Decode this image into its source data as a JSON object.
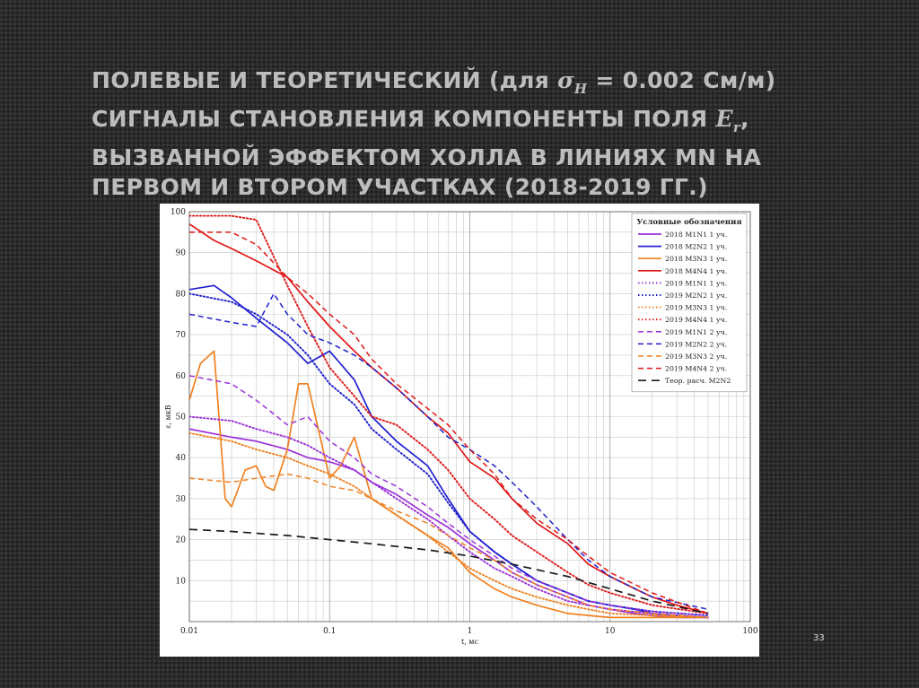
{
  "slide": {
    "title_lines": [
      {
        "pre": "ПОЛЕВЫЕ И ТЕОРЕТИЧЕСКИЙ (для ",
        "math": "σ",
        "math_sub": "H",
        "post": " = 0.002 См/м)"
      },
      {
        "pre": "СИГНАЛЫ СТАНОВЛЕНИЯ КОМПОНЕНТЫ ПОЛЯ ",
        "math": "E",
        "math_sub": "r",
        "post": ","
      },
      {
        "pre": "ВЫЗВАННОЙ ЭФФЕКТОМ ХОЛЛА В ЛИНИЯХ MN НА",
        "math": "",
        "math_sub": "",
        "post": ""
      },
      {
        "pre": "ПЕРВОМ И ВТОРОМ УЧАСТКАХ (2018-2019 ГГ.)",
        "math": "",
        "math_sub": "",
        "post": ""
      }
    ],
    "page_number": "33"
  },
  "chart_data": {
    "type": "line",
    "xlabel": "t, мс",
    "ylabel": "ε, мкВ",
    "x_scale": "log",
    "xlim": [
      0.01,
      100
    ],
    "ylim": [
      0,
      100
    ],
    "x_ticks": [
      0.01,
      0.1,
      1,
      10,
      100
    ],
    "x_tick_labels": [
      "0.01",
      "0.1",
      "1",
      "10",
      "100"
    ],
    "y_ticks": [
      10,
      20,
      30,
      40,
      50,
      60,
      70,
      80,
      90,
      100
    ],
    "y_tick_labels": [
      "10",
      "20",
      "30",
      "40",
      "50",
      "60",
      "70",
      "80",
      "90",
      "100"
    ],
    "grid": true,
    "legend": {
      "title": "Условные обозначения",
      "position": "top-right"
    },
    "series": [
      {
        "name": "2018 M1N1 1 уч.",
        "color": "#9b30d9",
        "style": "solid",
        "x": [
          0.01,
          0.02,
          0.03,
          0.05,
          0.07,
          0.1,
          0.15,
          0.2,
          0.3,
          0.5,
          0.7,
          1,
          1.5,
          2,
          3,
          5,
          7,
          10,
          15,
          20,
          30,
          50
        ],
        "y": [
          47,
          45,
          44,
          42,
          40,
          39,
          37,
          34,
          31,
          26,
          23,
          19,
          15,
          12,
          9,
          6,
          4,
          3,
          2,
          1.5,
          1,
          1
        ]
      },
      {
        "name": "2018 M2N2 1 уч.",
        "color": "#2020d0",
        "style": "solid",
        "x": [
          0.01,
          0.015,
          0.02,
          0.03,
          0.05,
          0.07,
          0.1,
          0.15,
          0.2,
          0.3,
          0.5,
          0.7,
          1,
          1.5,
          2,
          3,
          5,
          7,
          10,
          15,
          20,
          30,
          50
        ],
        "y": [
          81,
          82,
          79,
          74,
          68,
          63,
          66,
          59,
          50,
          44,
          38,
          30,
          22,
          17,
          14,
          10,
          7,
          5,
          4,
          3,
          2,
          1.5,
          1
        ]
      },
      {
        "name": "2018 M3N3 1 уч.",
        "color": "#f08020",
        "style": "solid",
        "x": [
          0.01,
          0.012,
          0.015,
          0.018,
          0.02,
          0.025,
          0.03,
          0.035,
          0.04,
          0.05,
          0.06,
          0.07,
          0.1,
          0.12,
          0.15,
          0.2,
          0.3,
          0.5,
          0.7,
          1,
          1.5,
          2,
          3,
          5,
          7,
          10,
          20,
          50
        ],
        "y": [
          54,
          63,
          66,
          30,
          28,
          37,
          38,
          33,
          32,
          42,
          58,
          58,
          35,
          38,
          45,
          30,
          26,
          21,
          18,
          12,
          8,
          6,
          4,
          2,
          1.5,
          1,
          1,
          1
        ]
      },
      {
        "name": "2018 M4N4 1 уч.",
        "color": "#e01818",
        "style": "solid",
        "x": [
          0.01,
          0.015,
          0.02,
          0.03,
          0.05,
          0.07,
          0.1,
          0.15,
          0.2,
          0.3,
          0.5,
          0.7,
          1,
          1.5,
          2,
          3,
          5,
          7,
          10,
          15,
          20,
          30,
          50
        ],
        "y": [
          97,
          93,
          91,
          88,
          84,
          78,
          72,
          66,
          62,
          57,
          50,
          46,
          39,
          35,
          30,
          24,
          19,
          14,
          11,
          8,
          6,
          4,
          2
        ]
      },
      {
        "name": "2019 M1N1 1 уч.",
        "color": "#9b30d9",
        "style": "dotted",
        "x": [
          0.01,
          0.02,
          0.03,
          0.05,
          0.07,
          0.1,
          0.15,
          0.2,
          0.3,
          0.5,
          0.7,
          1,
          1.5,
          2,
          3,
          5,
          7,
          10,
          20,
          50
        ],
        "y": [
          50,
          49,
          47,
          45,
          43,
          40,
          37,
          34,
          30,
          25,
          21,
          17,
          13,
          11,
          8,
          5,
          4,
          3,
          2,
          1
        ]
      },
      {
        "name": "2019 M2N2 1 уч.",
        "color": "#2020d0",
        "style": "dotted",
        "x": [
          0.01,
          0.02,
          0.03,
          0.05,
          0.07,
          0.1,
          0.15,
          0.2,
          0.3,
          0.5,
          0.7,
          1,
          1.5,
          2,
          3,
          5,
          7,
          10,
          20,
          50
        ],
        "y": [
          80,
          78,
          75,
          70,
          65,
          58,
          53,
          47,
          42,
          36,
          29,
          22,
          17,
          14,
          10,
          7,
          5,
          4,
          2.5,
          1.5
        ]
      },
      {
        "name": "2019 M3N3 1 уч.",
        "color": "#f08020",
        "style": "dotted",
        "x": [
          0.01,
          0.02,
          0.03,
          0.05,
          0.07,
          0.1,
          0.15,
          0.2,
          0.3,
          0.5,
          0.7,
          1,
          1.5,
          2,
          3,
          5,
          7,
          10,
          20,
          50
        ],
        "y": [
          46,
          44,
          42,
          40,
          38,
          36,
          33,
          30,
          26,
          21,
          17,
          13,
          10,
          8,
          6,
          4,
          3,
          2,
          1.5,
          1
        ]
      },
      {
        "name": "2019 M4N4 1 уч.",
        "color": "#e01818",
        "style": "dotted",
        "x": [
          0.01,
          0.02,
          0.03,
          0.05,
          0.07,
          0.1,
          0.15,
          0.2,
          0.3,
          0.5,
          0.7,
          1,
          1.5,
          2,
          3,
          5,
          7,
          10,
          20,
          50
        ],
        "y": [
          99,
          99,
          98,
          82,
          72,
          62,
          55,
          50,
          48,
          42,
          37,
          30,
          25,
          21,
          17,
          12,
          9,
          7,
          4,
          2
        ]
      },
      {
        "name": "2019 M1N1 2 уч.",
        "color": "#9b30d9",
        "style": "dashed",
        "x": [
          0.01,
          0.02,
          0.03,
          0.05,
          0.07,
          0.1,
          0.15,
          0.2,
          0.3,
          0.5,
          0.7,
          1,
          1.5,
          2,
          3,
          5,
          7,
          10,
          20,
          50
        ],
        "y": [
          60,
          58,
          54,
          48,
          50,
          44,
          40,
          36,
          33,
          28,
          24,
          20,
          16,
          13,
          10,
          7,
          5,
          4,
          2.5,
          1.5
        ]
      },
      {
        "name": "2019 M2N2 2 уч.",
        "color": "#2020d0",
        "style": "dashed",
        "x": [
          0.01,
          0.02,
          0.03,
          0.04,
          0.05,
          0.07,
          0.1,
          0.15,
          0.2,
          0.3,
          0.5,
          0.7,
          1,
          1.5,
          2,
          3,
          5,
          7,
          10,
          20,
          50
        ],
        "y": [
          75,
          73,
          72,
          80,
          75,
          70,
          68,
          65,
          62,
          57,
          50,
          45,
          42,
          38,
          34,
          28,
          20,
          15,
          11,
          6,
          3
        ]
      },
      {
        "name": "2019 M3N3 2 уч.",
        "color": "#f08020",
        "style": "dashed",
        "x": [
          0.01,
          0.02,
          0.03,
          0.05,
          0.07,
          0.1,
          0.15,
          0.2,
          0.3,
          0.5,
          0.7,
          1,
          1.5,
          2,
          3,
          5,
          7,
          10,
          20,
          50
        ],
        "y": [
          35,
          34,
          35,
          36,
          35,
          33,
          32,
          30,
          27,
          24,
          21,
          18,
          15,
          12,
          9,
          6,
          4,
          3,
          2,
          1
        ]
      },
      {
        "name": "2019 M4N4 2 уч.",
        "color": "#e01818",
        "style": "dashed",
        "x": [
          0.01,
          0.02,
          0.03,
          0.05,
          0.07,
          0.1,
          0.15,
          0.2,
          0.3,
          0.5,
          0.7,
          1,
          1.5,
          2,
          3,
          5,
          7,
          10,
          20,
          50
        ],
        "y": [
          95,
          95,
          92,
          84,
          80,
          75,
          70,
          64,
          58,
          52,
          48,
          42,
          36,
          30,
          25,
          20,
          16,
          12,
          7,
          2
        ]
      },
      {
        "name": "Теор. расч. M2N2",
        "color": "#1a1a1a",
        "style": "longdash",
        "x": [
          0.01,
          0.02,
          0.05,
          0.1,
          0.2,
          0.5,
          1,
          2,
          5,
          10,
          20,
          50
        ],
        "y": [
          22.5,
          22,
          21,
          20,
          19,
          17.5,
          16,
          14,
          11,
          8,
          5,
          2
        ]
      }
    ]
  }
}
